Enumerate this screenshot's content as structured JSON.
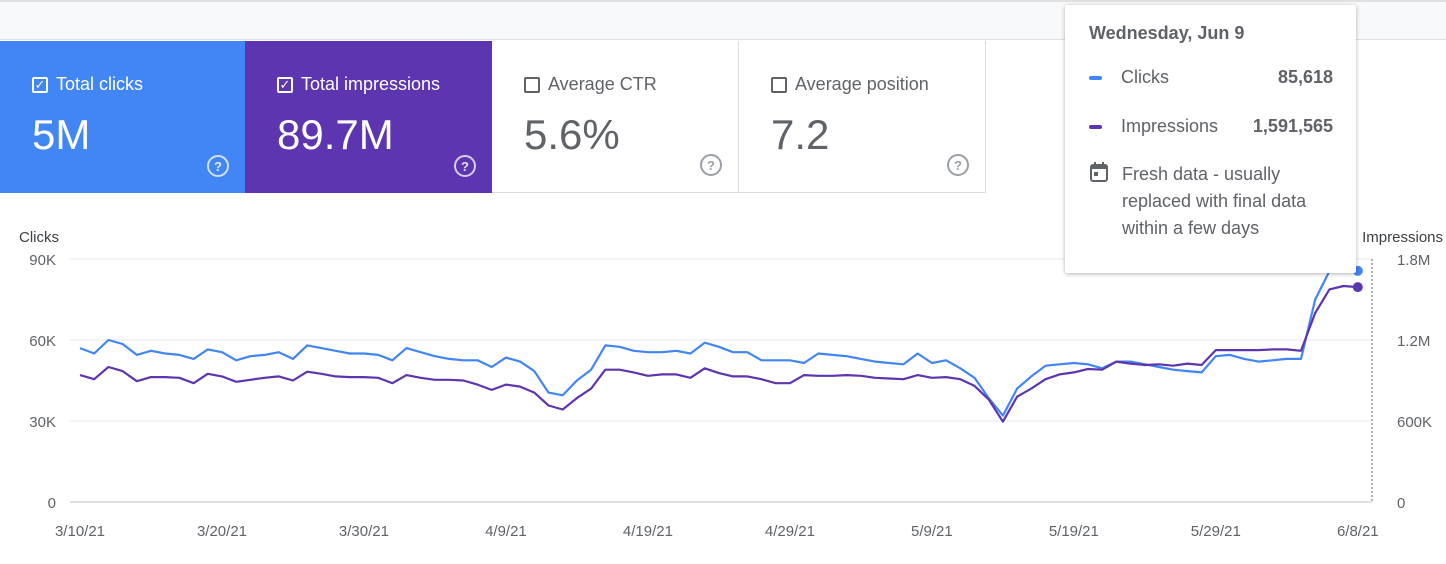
{
  "metrics": [
    {
      "label": "Total clicks",
      "value": "5M",
      "checked": true
    },
    {
      "label": "Total impressions",
      "value": "89.7M",
      "checked": true
    },
    {
      "label": "Average CTR",
      "value": "5.6%",
      "checked": false
    },
    {
      "label": "Average position",
      "value": "7.2",
      "checked": false
    }
  ],
  "help_glyph": "?",
  "check_glyph": "✓",
  "tooltip": {
    "date": "Wednesday, Jun 9",
    "rows": [
      {
        "name": "Clicks",
        "value": "85,618",
        "color": "#4285f4"
      },
      {
        "name": "Impressions",
        "value": "1,591,565",
        "color": "#5e35b1"
      }
    ],
    "fresh_note": "Fresh data - usually replaced with final data within a few days",
    "calendar_icon": "calendar-icon"
  },
  "colors": {
    "clicks": "#4285f4",
    "impressions": "#5e35b1",
    "grid": "#e8eaed",
    "axis_text": "#5f6368"
  },
  "chart_data": {
    "type": "line",
    "left_axis_title": "Clicks",
    "right_axis_title": "Impressions",
    "left_ticks": [
      "0",
      "30K",
      "60K",
      "90K"
    ],
    "right_ticks": [
      "0",
      "600K",
      "1.2M",
      "1.8M"
    ],
    "ylim_left": [
      0,
      90000
    ],
    "ylim_right": [
      0,
      1800000
    ],
    "x_ticks": [
      "3/10/21",
      "3/20/21",
      "3/30/21",
      "4/9/21",
      "4/19/21",
      "4/29/21",
      "5/9/21",
      "5/19/21",
      "5/29/21",
      "6/8/21"
    ],
    "x_start": "3/10/21",
    "x_end": "6/9/21",
    "grid": true,
    "series": [
      {
        "name": "Clicks",
        "axis": "left",
        "values": [
          57000,
          55000,
          60000,
          58500,
          54500,
          56000,
          55000,
          54500,
          53000,
          56500,
          55500,
          52500,
          54000,
          54500,
          55500,
          53000,
          58000,
          57000,
          56000,
          55000,
          55000,
          54500,
          52500,
          57000,
          55500,
          54000,
          53000,
          52500,
          52500,
          50000,
          53500,
          52000,
          48500,
          40500,
          39500,
          45000,
          49000,
          58000,
          57500,
          56000,
          55500,
          55500,
          56000,
          55000,
          59000,
          57500,
          55500,
          55500,
          52500,
          52500,
          52500,
          51500,
          55000,
          54500,
          54000,
          53000,
          52000,
          51500,
          51000,
          55000,
          51500,
          52500,
          49500,
          46000,
          38500,
          32000,
          42000,
          46500,
          50500,
          51000,
          51500,
          51000,
          49500,
          52000,
          52000,
          51000,
          50000,
          49000,
          48500,
          48000,
          54000,
          54500,
          53000,
          52000,
          52500,
          53000,
          53000,
          75000,
          85500,
          85500,
          85618
        ]
      },
      {
        "name": "Impressions",
        "axis": "right",
        "values": [
          940000,
          910000,
          1000000,
          970000,
          895000,
          925000,
          925000,
          920000,
          880000,
          950000,
          930000,
          890000,
          905000,
          920000,
          930000,
          900000,
          965000,
          950000,
          930000,
          925000,
          925000,
          920000,
          880000,
          940000,
          920000,
          905000,
          905000,
          900000,
          870000,
          830000,
          870000,
          855000,
          810000,
          715000,
          685000,
          770000,
          840000,
          980000,
          980000,
          960000,
          935000,
          945000,
          945000,
          920000,
          990000,
          955000,
          930000,
          930000,
          910000,
          880000,
          880000,
          940000,
          935000,
          935000,
          940000,
          935000,
          920000,
          915000,
          910000,
          940000,
          920000,
          925000,
          910000,
          860000,
          760000,
          595000,
          780000,
          840000,
          910000,
          945000,
          960000,
          985000,
          980000,
          1040000,
          1025000,
          1015000,
          1020000,
          1010000,
          1025000,
          1015000,
          1125000,
          1125000,
          1125000,
          1125000,
          1130000,
          1130000,
          1120000,
          1400000,
          1575000,
          1600000,
          1591565
        ]
      }
    ]
  }
}
